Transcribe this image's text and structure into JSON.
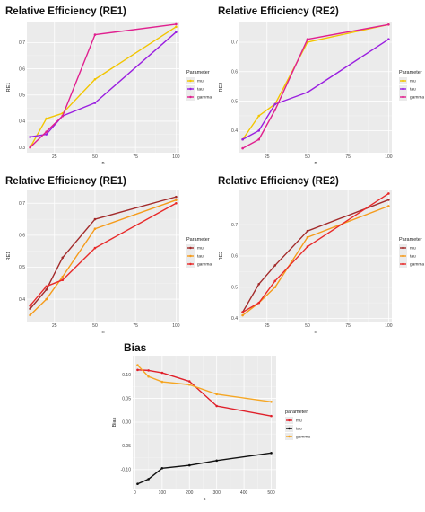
{
  "chart_data": [
    {
      "type": "line",
      "title": "Relative Efficiency (RE1)",
      "xlabel": "n",
      "ylabel": "RE1",
      "x": [
        10,
        20,
        30,
        50,
        100
      ],
      "xticks": [
        25,
        50,
        75,
        100
      ],
      "xlim": [
        8,
        102
      ],
      "ylim": [
        0.28,
        0.78
      ],
      "yticks": [
        0.3,
        0.4,
        0.5,
        0.6,
        0.7
      ],
      "ytick_labels": [
        "0.3",
        "0.4",
        "0.5",
        "0.6",
        "0.7"
      ],
      "legend_title": "Parameter",
      "legend_position": "right",
      "grid": true,
      "series": [
        {
          "name": "mu",
          "color": "#F2C500",
          "values": [
            0.3,
            0.41,
            0.43,
            0.56,
            0.76
          ]
        },
        {
          "name": "tau",
          "color": "#9A1FE0",
          "values": [
            0.34,
            0.35,
            0.42,
            0.47,
            0.74
          ]
        },
        {
          "name": "gamma",
          "color": "#E0208F",
          "values": [
            0.3,
            0.36,
            0.42,
            0.73,
            0.77
          ]
        }
      ]
    },
    {
      "type": "line",
      "title": "Relative Efficiency (RE2)",
      "xlabel": "n",
      "ylabel": "RE2",
      "x": [
        10,
        20,
        30,
        50,
        100
      ],
      "xticks": [
        25,
        50,
        75,
        100
      ],
      "xlim": [
        8,
        102
      ],
      "ylim": [
        0.325,
        0.77
      ],
      "yticks": [
        0.4,
        0.5,
        0.6,
        0.7
      ],
      "ytick_labels": [
        "0.4",
        "0.5",
        "0.6",
        "0.7"
      ],
      "legend_title": "Parameter",
      "legend_position": "right",
      "grid": true,
      "series": [
        {
          "name": "mu",
          "color": "#F2C500",
          "values": [
            0.37,
            0.45,
            0.49,
            0.7,
            0.76
          ]
        },
        {
          "name": "tau",
          "color": "#9A1FE0",
          "values": [
            0.37,
            0.4,
            0.49,
            0.53,
            0.71
          ]
        },
        {
          "name": "gamma",
          "color": "#E0208F",
          "values": [
            0.34,
            0.37,
            0.47,
            0.71,
            0.76
          ]
        }
      ]
    },
    {
      "type": "line",
      "title": "Relative Efficiency (RE1)",
      "xlabel": "n",
      "ylabel": "RE1",
      "x": [
        10,
        20,
        30,
        50,
        100
      ],
      "xticks": [
        25,
        50,
        75,
        100
      ],
      "xlim": [
        8,
        102
      ],
      "ylim": [
        0.33,
        0.74
      ],
      "yticks": [
        0.4,
        0.5,
        0.6,
        0.7
      ],
      "ytick_labels": [
        "0.4",
        "0.5",
        "0.6",
        "0.7"
      ],
      "legend_title": "Parameter",
      "legend_position": "right",
      "grid": true,
      "series": [
        {
          "name": "mu",
          "color": "#A32B2B",
          "values": [
            0.37,
            0.43,
            0.53,
            0.65,
            0.72
          ]
        },
        {
          "name": "tau",
          "color": "#F59B1A",
          "values": [
            0.35,
            0.4,
            0.47,
            0.62,
            0.71
          ]
        },
        {
          "name": "gamma",
          "color": "#E82A2A",
          "values": [
            0.38,
            0.44,
            0.46,
            0.56,
            0.7
          ]
        }
      ]
    },
    {
      "type": "line",
      "title": "Relative Efficiency (RE2)",
      "xlabel": "n",
      "ylabel": "RE2",
      "x": [
        10,
        20,
        30,
        50,
        100
      ],
      "xticks": [
        25,
        50,
        75,
        100
      ],
      "xlim": [
        8,
        102
      ],
      "ylim": [
        0.39,
        0.81
      ],
      "yticks": [
        0.4,
        0.5,
        0.6,
        0.7
      ],
      "ytick_labels": [
        "0.4",
        "0.5",
        "0.6",
        "0.7"
      ],
      "legend_title": "Parameter",
      "legend_position": "right",
      "grid": true,
      "series": [
        {
          "name": "mu",
          "color": "#A32B2B",
          "values": [
            0.42,
            0.51,
            0.57,
            0.68,
            0.78
          ]
        },
        {
          "name": "tau",
          "color": "#F59B1A",
          "values": [
            0.41,
            0.45,
            0.5,
            0.66,
            0.76
          ]
        },
        {
          "name": "gamma",
          "color": "#E82A2A",
          "values": [
            0.42,
            0.45,
            0.52,
            0.63,
            0.8
          ]
        }
      ]
    },
    {
      "type": "line",
      "title": "Bias",
      "xlabel": "k",
      "ylabel": "Bias",
      "x": [
        10,
        50,
        100,
        200,
        300,
        500
      ],
      "xticks": [
        0,
        100,
        200,
        300,
        400,
        500
      ],
      "xlim": [
        -8,
        518
      ],
      "ylim": [
        -0.14,
        0.14
      ],
      "yticks": [
        -0.1,
        -0.05,
        0.0,
        0.05,
        0.1
      ],
      "ytick_labels": [
        "-0.10",
        "-0.05",
        "0.00",
        "0.05",
        "0.10"
      ],
      "legend_title": "parameter",
      "legend_position": "right",
      "grid": true,
      "series": [
        {
          "name": "mu",
          "color": "#E0202A",
          "values": [
            0.11,
            0.109,
            0.104,
            0.086,
            0.034,
            0.013
          ]
        },
        {
          "name": "tau",
          "color": "#111111",
          "values": [
            -0.13,
            -0.12,
            -0.097,
            -0.091,
            -0.081,
            -0.065
          ]
        },
        {
          "name": "gamma",
          "color": "#F5A623",
          "values": [
            0.12,
            0.096,
            0.085,
            0.079,
            0.059,
            0.043
          ]
        }
      ]
    }
  ]
}
